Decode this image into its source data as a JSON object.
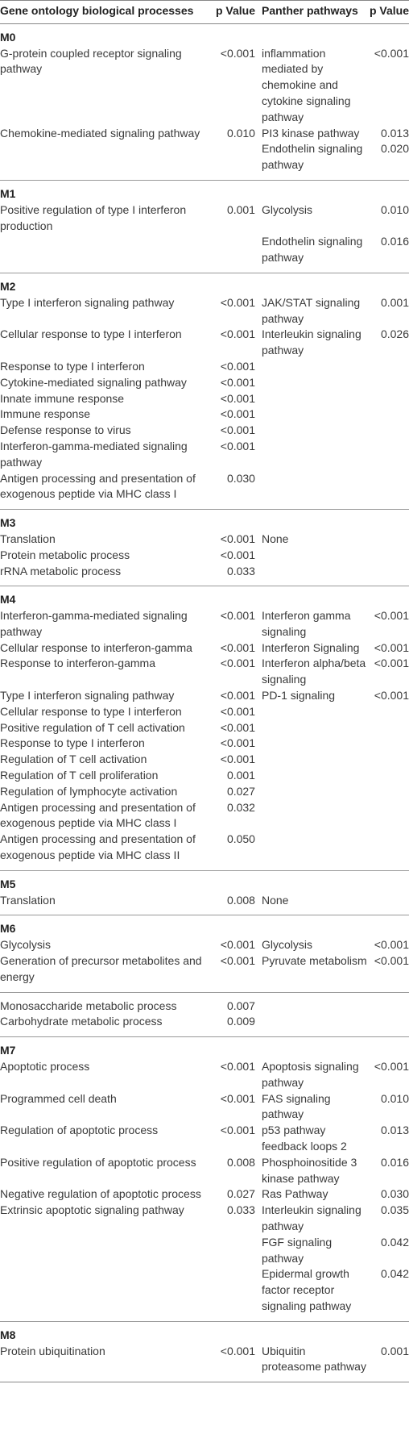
{
  "table": {
    "header": [
      "Gene ontology biological processes",
      "p Value",
      "Panther pathways",
      "p Value"
    ],
    "sections": [
      {
        "label": "M0",
        "rows": [
          [
            "G-protein coupled receptor signaling pathway",
            "<0.001",
            "inflammation mediated by chemokine and cytokine signaling pathway",
            "<0.001"
          ],
          [
            "Chemokine-mediated signaling pathway",
            "0.010",
            "PI3 kinase pathway",
            "0.013"
          ],
          [
            null,
            null,
            "Endothelin signaling pathway",
            "0.020"
          ]
        ]
      },
      {
        "label": "M1",
        "rows": [
          [
            "Positive regulation of type I interferon production",
            "0.001",
            "Glycolysis",
            "0.010"
          ],
          [
            null,
            null,
            "Endothelin signaling pathway",
            "0.016"
          ]
        ]
      },
      {
        "label": "M2",
        "rows": [
          [
            "Type I interferon signaling pathway",
            "<0.001",
            "JAK/STAT signaling pathway",
            "0.001"
          ],
          [
            "Cellular response to type I interferon",
            "<0.001",
            "Interleukin signaling pathway",
            "0.026"
          ],
          [
            "Response to type I interferon",
            "<0.001",
            null,
            null
          ],
          [
            "Cytokine-mediated signaling pathway",
            "<0.001",
            null,
            null
          ],
          [
            "Innate immune response",
            "<0.001",
            null,
            null
          ],
          [
            "Immune response",
            "<0.001",
            null,
            null
          ],
          [
            "Defense response to virus",
            "<0.001",
            null,
            null
          ],
          [
            "Interferon-gamma-mediated signaling pathway",
            "<0.001",
            null,
            null
          ],
          [
            "Antigen processing and presentation of exogenous peptide via MHC class I",
            "0.030",
            null,
            null
          ]
        ]
      },
      {
        "label": "M3",
        "rows": [
          [
            "Translation",
            "<0.001",
            "None",
            null
          ],
          [
            "Protein metabolic process",
            "<0.001",
            null,
            null
          ],
          [
            "rRNA metabolic process",
            "0.033",
            null,
            null
          ]
        ]
      },
      {
        "label": "M4",
        "rows": [
          [
            "Interferon-gamma-mediated signaling pathway",
            "<0.001",
            "Interferon gamma signaling",
            "<0.001"
          ],
          [
            "Cellular response to interferon-gamma",
            "<0.001",
            "Interferon Signaling",
            "<0.001"
          ],
          [
            "Response to interferon-gamma",
            "<0.001",
            "Interferon alpha/beta signaling",
            "<0.001"
          ],
          [
            "Type I interferon signaling pathway",
            "<0.001",
            "PD-1 signaling",
            "<0.001"
          ],
          [
            "Cellular response to type I interferon",
            "<0.001",
            null,
            null
          ],
          [
            "Positive regulation of T cell activation",
            "<0.001",
            null,
            null
          ],
          [
            "Response to type I interferon",
            "<0.001",
            null,
            null
          ],
          [
            "Regulation of T cell activation",
            "<0.001",
            null,
            null
          ],
          [
            "Regulation of T cell proliferation",
            "0.001",
            null,
            null
          ],
          [
            "Regulation of lymphocyte activation",
            "0.027",
            null,
            null
          ],
          [
            "Antigen processing and presentation of exogenous peptide via MHC class I",
            "0.032",
            null,
            null
          ],
          [
            "Antigen processing and presentation of exogenous peptide via MHC class II",
            "0.050",
            null,
            null
          ]
        ]
      },
      {
        "label": "M5",
        "rows": [
          [
            "Translation",
            "0.008",
            "None",
            null
          ]
        ]
      },
      {
        "label": "M6",
        "rows": [
          [
            "Glycolysis",
            "<0.001",
            "Glycolysis",
            "<0.001"
          ],
          [
            "Generation of precursor metabolites and energy",
            "<0.001",
            "Pyruvate metabolism",
            "<0.001"
          ]
        ]
      },
      {
        "rows": [
          [
            "Monosaccharide metabolic process",
            "0.007",
            null,
            null
          ],
          [
            "Carbohydrate metabolic process",
            "0.009",
            null,
            null
          ]
        ]
      },
      {
        "label": "M7",
        "rows": [
          [
            "Apoptotic process",
            "<0.001",
            "Apoptosis signaling pathway",
            "<0.001"
          ],
          [
            "Programmed cell death",
            "<0.001",
            "FAS signaling pathway",
            "0.010"
          ],
          [
            "Regulation of apoptotic process",
            "<0.001",
            "p53 pathway feedback loops 2",
            "0.013"
          ],
          [
            "Positive regulation of apoptotic process",
            "0.008",
            "Phosphoinositide 3 kinase pathway",
            "0.016"
          ],
          [
            "Negative regulation of apoptotic process",
            "0.027",
            "Ras Pathway",
            "0.030"
          ],
          [
            "Extrinsic apoptotic signaling pathway",
            "0.033",
            "Interleukin signaling pathway",
            "0.035"
          ],
          [
            null,
            null,
            "FGF signaling pathway",
            "0.042"
          ],
          [
            null,
            null,
            "Epidermal growth factor receptor signaling pathway",
            "0.042"
          ]
        ]
      },
      {
        "label": "M8",
        "rows": [
          [
            "Protein ubiquitination",
            "<0.001",
            "Ubiquitin proteasome pathway",
            "0.001"
          ]
        ]
      }
    ]
  }
}
